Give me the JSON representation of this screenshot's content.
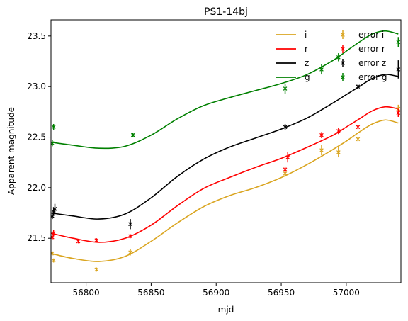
{
  "chart_data": {
    "type": "line",
    "title": "PS1-14bj",
    "xlabel": "mjd",
    "ylabel": "Apparent magnitude",
    "xlim": [
      56773,
      57042
    ],
    "ylim": [
      23.66,
      21.06
    ],
    "y_inverted": true,
    "xticks": [
      56800,
      56850,
      56900,
      56950,
      57000
    ],
    "yticks": [
      21.5,
      22.0,
      22.5,
      23.0,
      23.5
    ],
    "xtick_labels": [
      "56800",
      "56850",
      "56900",
      "56950",
      "57000"
    ],
    "ytick_labels": [
      "21.5",
      "22.0",
      "22.5",
      "23.0",
      "23.5"
    ],
    "grid": false,
    "legend": {
      "placement": "top-right",
      "columns": 2,
      "line_entries": [
        "i",
        "r",
        "z",
        "g"
      ],
      "error_entries": [
        "error i",
        "error r",
        "error z",
        "error g"
      ]
    },
    "series": [
      {
        "name": "i",
        "color": "#DAA520",
        "curve": [
          [
            56773,
            21.35
          ],
          [
            56790,
            21.3
          ],
          [
            56810,
            21.27
          ],
          [
            56830,
            21.32
          ],
          [
            56850,
            21.47
          ],
          [
            56870,
            21.65
          ],
          [
            56890,
            21.81
          ],
          [
            56910,
            21.92
          ],
          [
            56930,
            22.0
          ],
          [
            56950,
            22.1
          ],
          [
            56970,
            22.23
          ],
          [
            56990,
            22.38
          ],
          [
            57000,
            22.46
          ],
          [
            57010,
            22.55
          ],
          [
            57020,
            22.63
          ],
          [
            57030,
            22.67
          ],
          [
            57040,
            22.64
          ]
        ],
        "points": [
          {
            "x": 56774,
            "y": 21.35,
            "err": 0.02
          },
          {
            "x": 56775,
            "y": 21.28,
            "err": 0.02
          },
          {
            "x": 56808,
            "y": 21.19,
            "err": 0.02
          },
          {
            "x": 56834,
            "y": 21.36,
            "err": 0.03
          },
          {
            "x": 56953,
            "y": 22.14,
            "err": 0.03
          },
          {
            "x": 56981,
            "y": 22.37,
            "err": 0.05
          },
          {
            "x": 56994,
            "y": 22.35,
            "err": 0.05
          },
          {
            "x": 57009,
            "y": 22.48,
            "err": 0.02
          },
          {
            "x": 57040,
            "y": 22.78,
            "err": 0.04
          }
        ]
      },
      {
        "name": "r",
        "color": "#FF0000",
        "curve": [
          [
            56773,
            21.55
          ],
          [
            56790,
            21.5
          ],
          [
            56810,
            21.46
          ],
          [
            56830,
            21.5
          ],
          [
            56850,
            21.63
          ],
          [
            56870,
            21.82
          ],
          [
            56890,
            21.99
          ],
          [
            56910,
            22.1
          ],
          [
            56930,
            22.2
          ],
          [
            56950,
            22.29
          ],
          [
            56970,
            22.4
          ],
          [
            56990,
            22.52
          ],
          [
            57000,
            22.6
          ],
          [
            57010,
            22.68
          ],
          [
            57020,
            22.76
          ],
          [
            57030,
            22.8
          ],
          [
            57040,
            22.78
          ]
        ],
        "points": [
          {
            "x": 56774,
            "y": 21.51,
            "err": 0.02
          },
          {
            "x": 56775,
            "y": 21.55,
            "err": 0.03
          },
          {
            "x": 56794,
            "y": 21.47,
            "err": 0.02
          },
          {
            "x": 56808,
            "y": 21.48,
            "err": 0.02
          },
          {
            "x": 56834,
            "y": 21.52,
            "err": 0.02
          },
          {
            "x": 56953,
            "y": 22.18,
            "err": 0.03
          },
          {
            "x": 56955,
            "y": 22.3,
            "err": 0.05
          },
          {
            "x": 56981,
            "y": 22.52,
            "err": 0.03
          },
          {
            "x": 56994,
            "y": 22.56,
            "err": 0.03
          },
          {
            "x": 57009,
            "y": 22.6,
            "err": 0.02
          },
          {
            "x": 57040,
            "y": 22.74,
            "err": 0.04
          }
        ]
      },
      {
        "name": "z",
        "color": "#000000",
        "curve": [
          [
            56773,
            21.75
          ],
          [
            56790,
            21.72
          ],
          [
            56810,
            21.69
          ],
          [
            56830,
            21.74
          ],
          [
            56850,
            21.9
          ],
          [
            56870,
            22.11
          ],
          [
            56890,
            22.28
          ],
          [
            56910,
            22.4
          ],
          [
            56930,
            22.49
          ],
          [
            56950,
            22.58
          ],
          [
            56970,
            22.69
          ],
          [
            56990,
            22.84
          ],
          [
            57000,
            22.92
          ],
          [
            57010,
            23.0
          ],
          [
            57020,
            23.08
          ],
          [
            57030,
            23.12
          ],
          [
            57040,
            23.1
          ]
        ],
        "points": [
          {
            "x": 56774,
            "y": 21.72,
            "err": 0.03
          },
          {
            "x": 56775,
            "y": 21.76,
            "err": 0.04
          },
          {
            "x": 56776,
            "y": 21.79,
            "err": 0.05
          },
          {
            "x": 56834,
            "y": 21.64,
            "err": 0.05
          },
          {
            "x": 56953,
            "y": 22.6,
            "err": 0.03
          },
          {
            "x": 57009,
            "y": 23.0,
            "err": 0.02
          },
          {
            "x": 57040,
            "y": 23.17,
            "err": 0.09
          }
        ]
      },
      {
        "name": "g",
        "color": "#008000",
        "curve": [
          [
            56773,
            22.45
          ],
          [
            56790,
            22.42
          ],
          [
            56810,
            22.39
          ],
          [
            56830,
            22.41
          ],
          [
            56850,
            22.52
          ],
          [
            56870,
            22.68
          ],
          [
            56890,
            22.81
          ],
          [
            56910,
            22.89
          ],
          [
            56930,
            22.96
          ],
          [
            56950,
            23.03
          ],
          [
            56970,
            23.12
          ],
          [
            56990,
            23.26
          ],
          [
            57000,
            23.35
          ],
          [
            57010,
            23.44
          ],
          [
            57020,
            23.52
          ],
          [
            57030,
            23.55
          ],
          [
            57040,
            23.52
          ]
        ],
        "points": [
          {
            "x": 56774,
            "y": 22.44,
            "err": 0.03
          },
          {
            "x": 56775,
            "y": 22.6,
            "err": 0.03
          },
          {
            "x": 56836,
            "y": 22.52,
            "err": 0.02
          },
          {
            "x": 56953,
            "y": 22.98,
            "err": 0.05
          },
          {
            "x": 56981,
            "y": 23.17,
            "err": 0.05
          },
          {
            "x": 56994,
            "y": 23.29,
            "err": 0.04
          },
          {
            "x": 57040,
            "y": 23.44,
            "err": 0.05
          }
        ]
      }
    ]
  }
}
